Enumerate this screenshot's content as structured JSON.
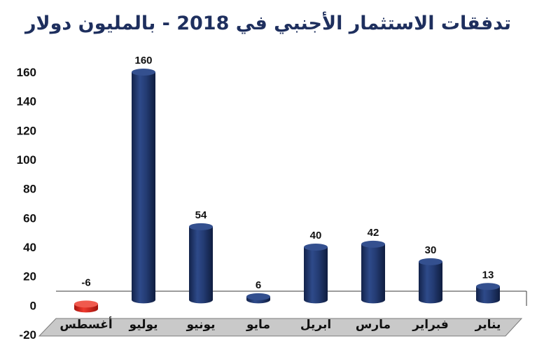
{
  "chart_data": {
    "type": "bar",
    "title": "تدفقات الاستثمار الأجنبي في 2018 - بالمليون دولار",
    "categories": [
      "يناير",
      "فبراير",
      "مارس",
      "ابريل",
      "مايو",
      "يونيو",
      "يوليو",
      "أغسطس"
    ],
    "values": [
      13,
      30,
      42,
      40,
      6,
      54,
      160,
      -6
    ],
    "data_labels": [
      "13",
      "30",
      "42",
      "40",
      "6",
      "54",
      "160",
      "-6"
    ],
    "ylim": [
      -20,
      160
    ],
    "yticks": [
      "-20",
      "0",
      "20",
      "40",
      "60",
      "80",
      "100",
      "120",
      "140",
      "160"
    ],
    "x_order": "right-to-left",
    "grid": false,
    "bar_style": "3d-cylinder",
    "colors": {
      "positive": "#1f3366",
      "negative": "#d82a20",
      "negative_label": "#d82a20",
      "title": "#1e2f5e",
      "floor_line": "#3a3a3a"
    }
  }
}
